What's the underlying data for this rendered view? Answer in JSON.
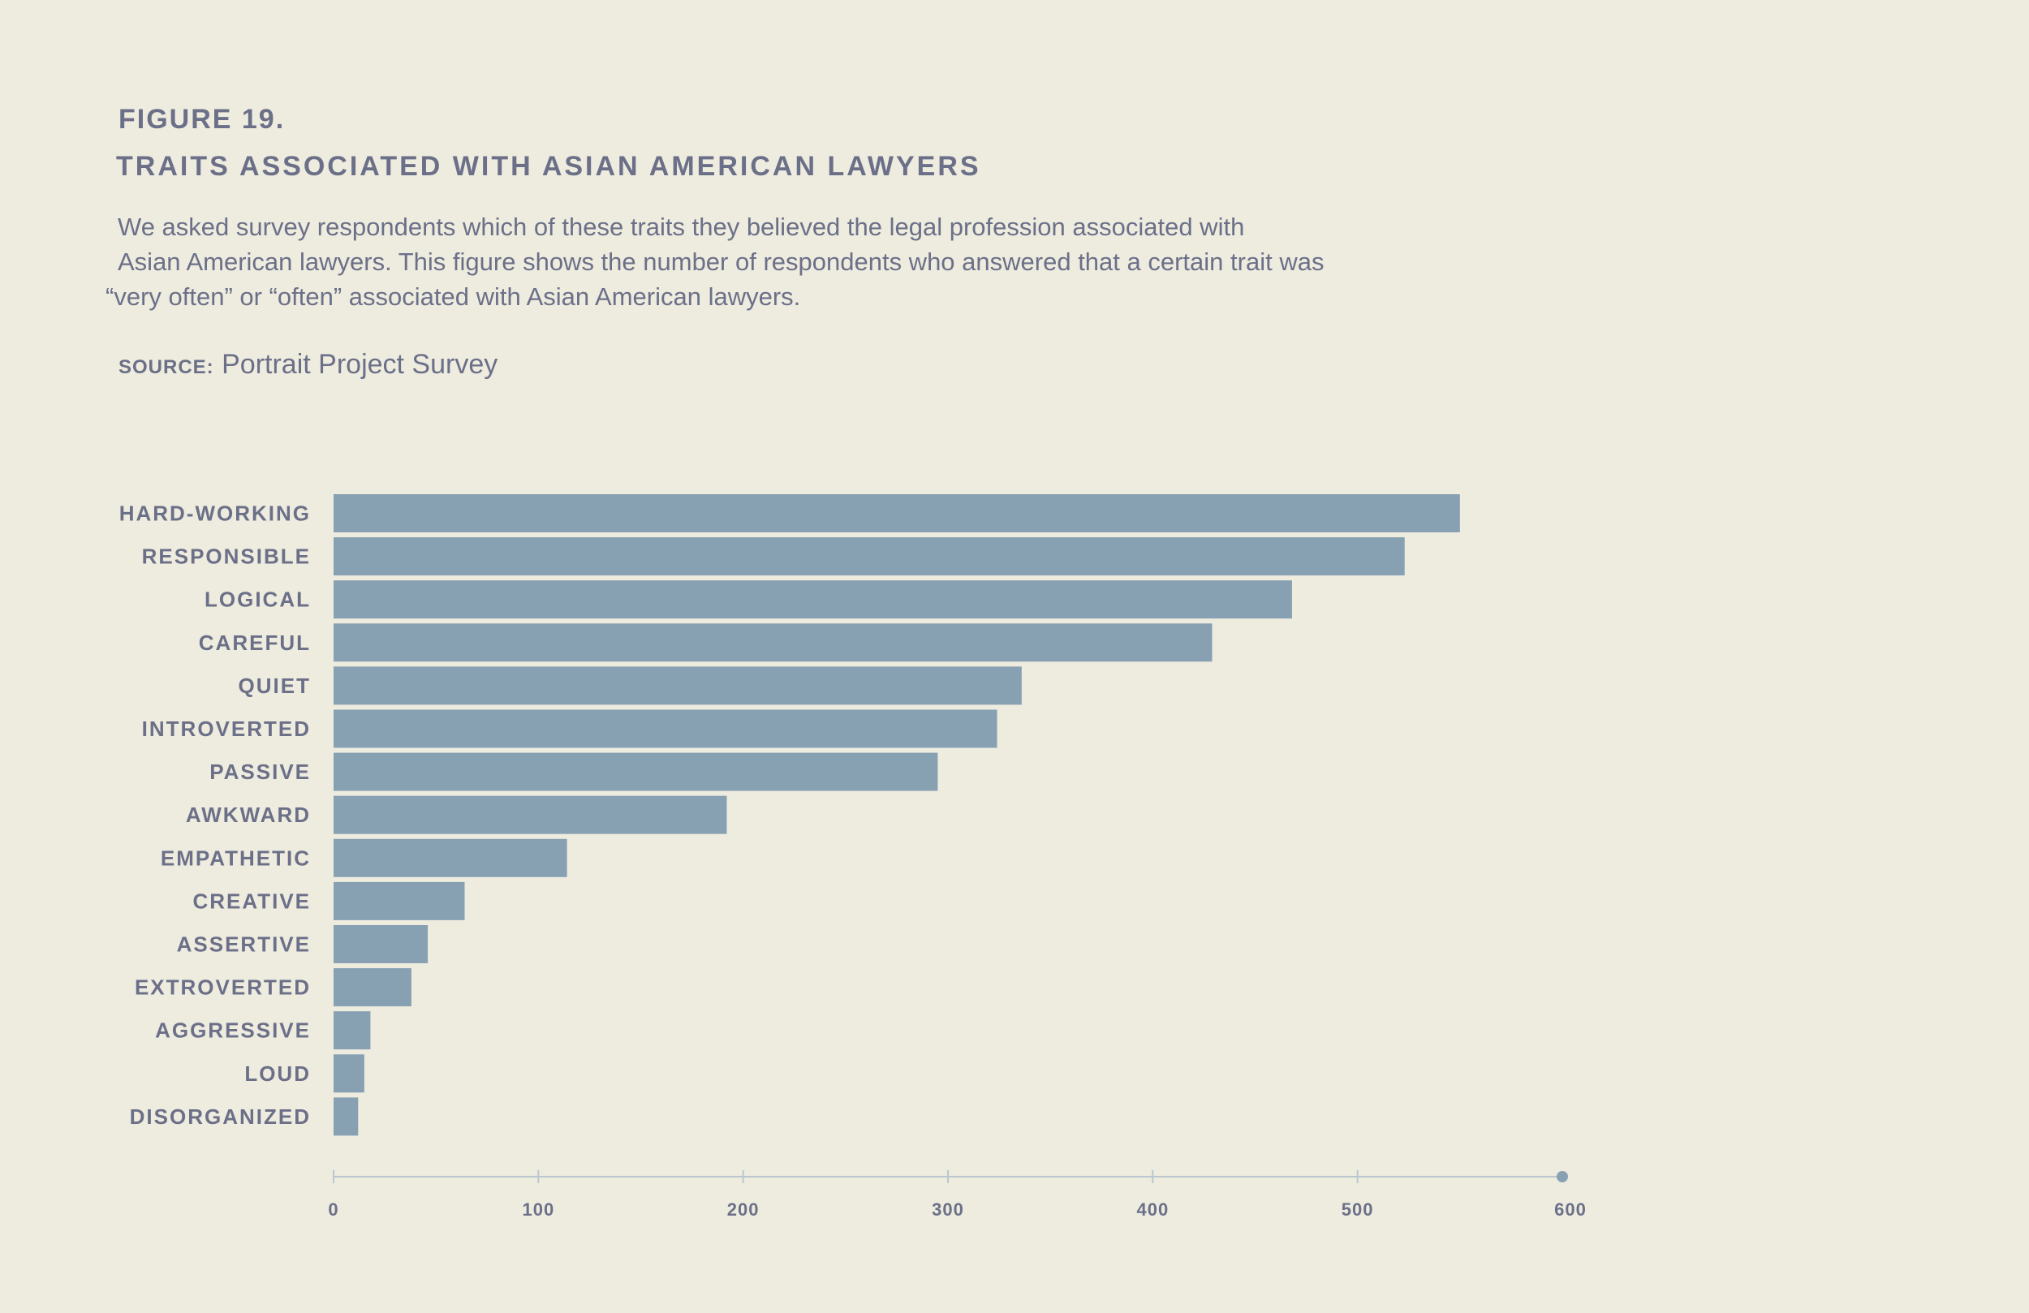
{
  "figure": {
    "number": "FIGURE 19.",
    "title": "TRAITS ASSOCIATED WITH ASIAN AMERICAN LAWYERS",
    "description": [
      "We asked survey respondents which of these traits they believed the legal profession associated with",
      "Asian American lawyers. This figure shows the number of respondents who answered that a certain trait was",
      "“very often” or “often” associated with Asian American lawyers."
    ],
    "source_label": "SOURCE:",
    "source_text": "Portrait Project Survey"
  },
  "colors": {
    "background": "#eeebdf",
    "bar": "#87a1b3",
    "text": "#6b7088",
    "axis": "#b9c8cf"
  },
  "chart_data": {
    "type": "bar",
    "orientation": "horizontal",
    "categories": [
      "HARD-WORKING",
      "RESPONSIBLE",
      "LOGICAL",
      "CAREFUL",
      "QUIET",
      "INTROVERTED",
      "PASSIVE",
      "AWKWARD",
      "EMPATHETIC",
      "CREATIVE",
      "ASSERTIVE",
      "EXTROVERTED",
      "AGGRESSIVE",
      "LOUD",
      "DISORGANIZED"
    ],
    "values": [
      550,
      523,
      468,
      429,
      336,
      324,
      295,
      192,
      114,
      64,
      46,
      38,
      18,
      15,
      12
    ],
    "xlim": [
      0,
      600
    ],
    "xticks": [
      0,
      100,
      200,
      300,
      400,
      500,
      600
    ],
    "xlabel": "",
    "ylabel": "",
    "grid": false,
    "legend": "none"
  }
}
